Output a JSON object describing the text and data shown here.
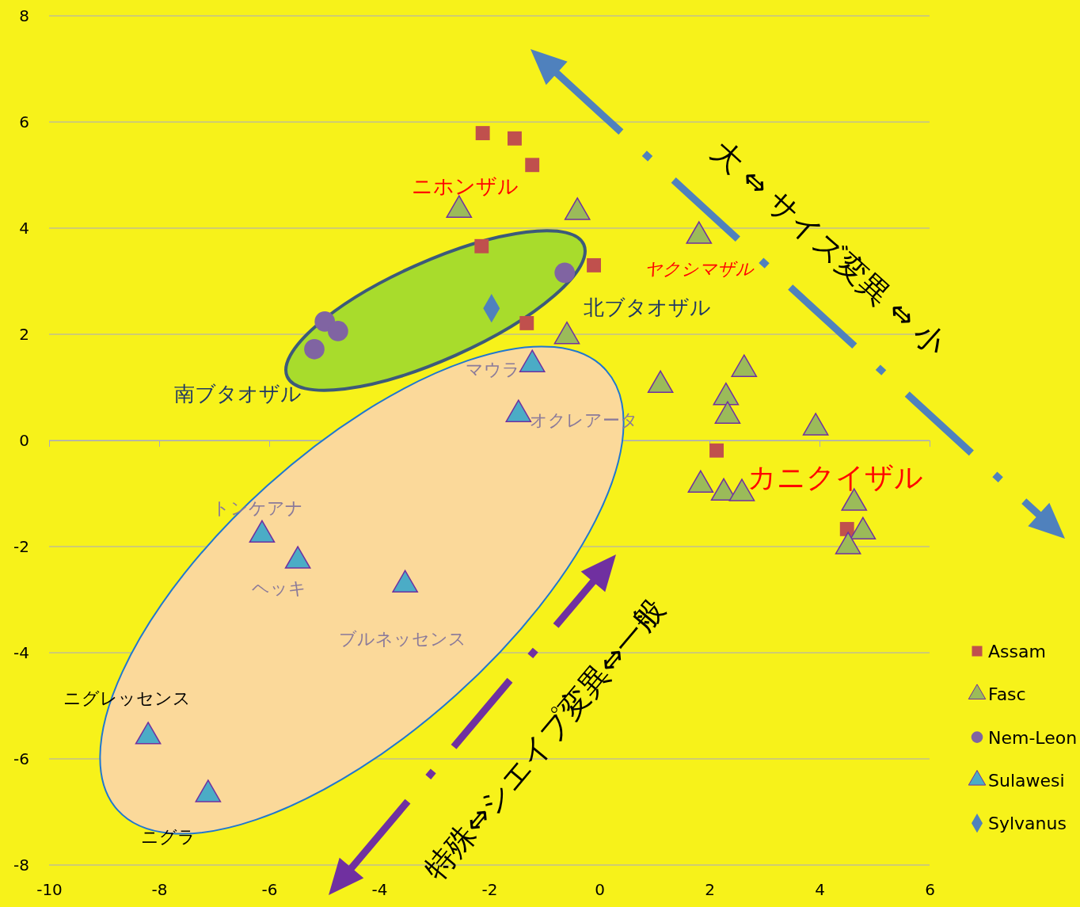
{
  "chart_data": {
    "type": "scatter",
    "xlim": [
      -10,
      6
    ],
    "ylim": [
      -8,
      8
    ],
    "xticks": [
      -10,
      -8,
      -6,
      -4,
      -2,
      0,
      2,
      4,
      6
    ],
    "yticks": [
      -8,
      -6,
      -4,
      -2,
      0,
      2,
      4,
      6,
      8
    ],
    "grid": "y",
    "legend": "right",
    "series": [
      {
        "name": "Assam",
        "color": "#c0504d",
        "marker": "square",
        "x": [
          -2.12,
          -1.54,
          -1.22,
          -2.14,
          -0.1,
          -1.32,
          2.13,
          4.5
        ],
        "values": [
          5.79,
          5.69,
          5.19,
          3.66,
          3.3,
          2.21,
          -0.19,
          -1.67
        ]
      },
      {
        "name": "Fasc",
        "color": "#9bbb59",
        "marker": "triangle",
        "x": [
          -2.55,
          -0.4,
          1.81,
          -0.59,
          1.11,
          2.63,
          2.3,
          2.33,
          3.93,
          1.84,
          2.26,
          2.59,
          4.63,
          4.79,
          4.52
        ],
        "values": [
          4.34,
          4.3,
          3.85,
          1.96,
          1.04,
          1.34,
          0.81,
          0.46,
          0.24,
          -0.84,
          -0.99,
          -1.0,
          -1.18,
          -1.72,
          -2.0
        ]
      },
      {
        "name": "Nem-Leon",
        "color": "#8064a2",
        "marker": "circle",
        "x": [
          -0.63,
          -4.99,
          -4.75,
          -5.18
        ],
        "values": [
          3.16,
          2.24,
          2.06,
          1.72
        ]
      },
      {
        "name": "Sulawesi",
        "color": "#4bacc6",
        "marker": "triangle",
        "x": [
          -1.22,
          -1.47,
          -6.13,
          -5.48,
          -3.53,
          -8.2,
          -7.11
        ],
        "values": [
          1.43,
          0.49,
          -1.78,
          -2.27,
          -2.72,
          -5.58,
          -6.67
        ]
      },
      {
        "name": "Sylvanus",
        "color": "#4f81bd",
        "marker": "diamond",
        "x": [
          -1.96
        ],
        "values": [
          2.49
        ]
      }
    ],
    "annotations": [
      "ニホンザル",
      "ヤクシマザル",
      "北ブタオザル",
      "南ブタオザル",
      "マウラ",
      "オクレアータ",
      "カニクイザル",
      "トンケアナ",
      "ヘッキ",
      "ブルネッセンス",
      "ニグレッセンス",
      "ニグラ",
      "大 ⇔ サイズ変異 ⇔ 小",
      "特殊⇔シエイプ変異⇔一般"
    ]
  }
}
